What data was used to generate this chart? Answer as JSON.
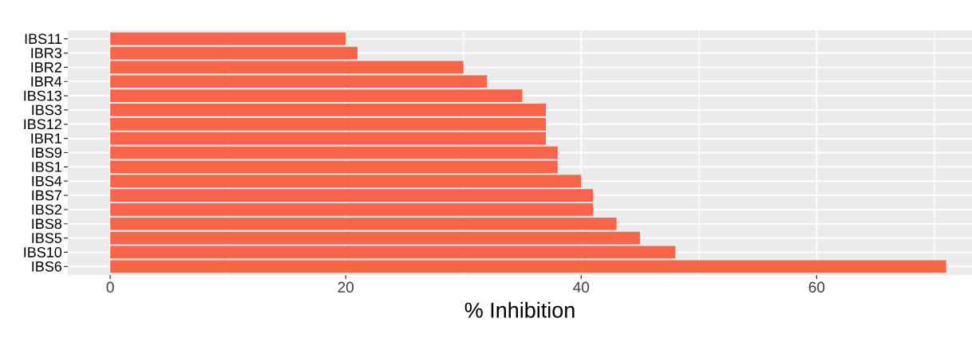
{
  "chart_data": {
    "type": "bar",
    "orientation": "horizontal",
    "xlabel": "% Inhibition",
    "categories": [
      "IBS11",
      "IBR3",
      "IBR2",
      "IBR4",
      "IBS13",
      "IBS3",
      "IBS12",
      "IBR1",
      "IBS9",
      "IBS1",
      "IBS4",
      "IBS7",
      "IBS2",
      "IBS8",
      "IBS5",
      "IBS10",
      "IBS6"
    ],
    "values": [
      20,
      21,
      30,
      32,
      35,
      37,
      37,
      37,
      38,
      38,
      40,
      41,
      41,
      43,
      45,
      48,
      71
    ],
    "color": "#fa6448",
    "xlim": [
      -3.6,
      73.2
    ],
    "xticks": [
      0,
      {
        "value": 10,
        "label": null
      },
      20,
      {
        "value": 30,
        "label": null
      },
      40,
      {
        "value": 50,
        "label": null
      },
      60,
      {
        "value": 70,
        "label": null
      }
    ],
    "grid": true
  }
}
